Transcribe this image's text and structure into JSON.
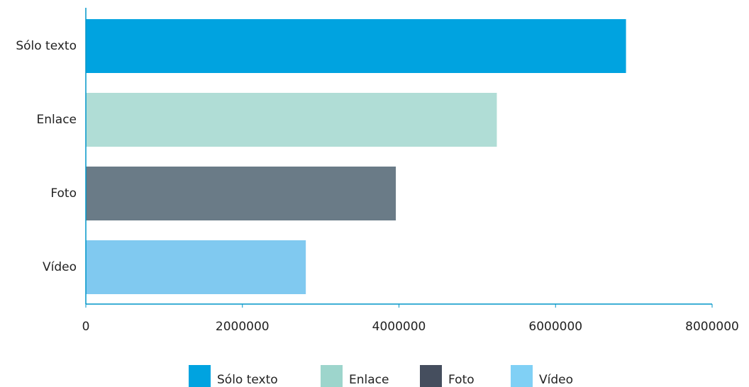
{
  "chart_data": {
    "type": "barh",
    "categories": [
      "Sólo texto",
      "Enlace",
      "Foto",
      "Vídeo"
    ],
    "values": [
      6900000,
      5250000,
      3960000,
      2810000
    ],
    "colors": [
      "#00a3e0",
      "#b0ddd6",
      "#6a7b87",
      "#80c9f0"
    ],
    "legend_colors": [
      "#00a3e0",
      "#9dd5cc",
      "#454e5e",
      "#80d0f5"
    ],
    "xlim": [
      0,
      8000000
    ],
    "xticks": [
      0,
      2000000,
      4000000,
      6000000,
      8000000
    ],
    "axis_color": "#0096c8"
  }
}
